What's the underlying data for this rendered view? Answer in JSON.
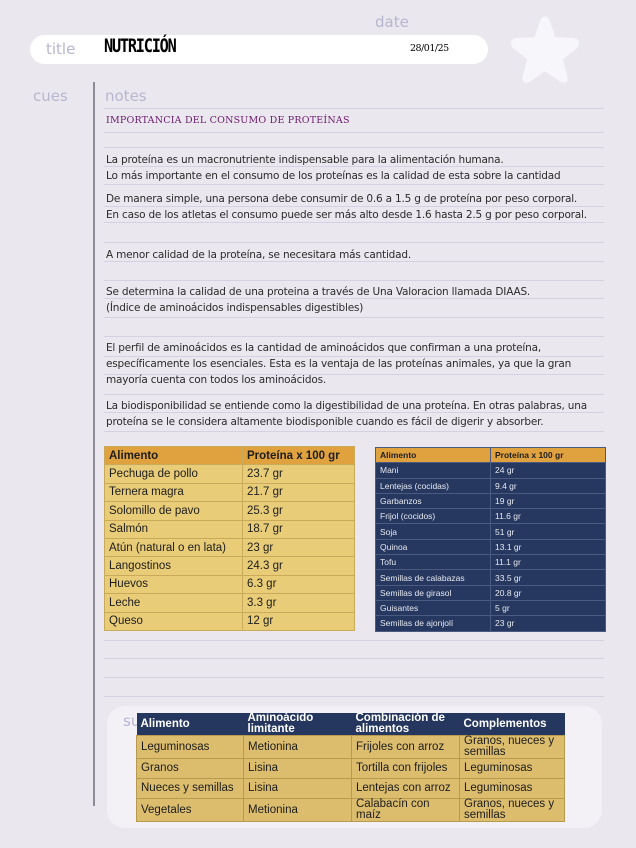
{
  "labels": {
    "title": "title",
    "date": "date",
    "cues": "cues",
    "notes": "notes",
    "summary": "su"
  },
  "title": "NUTRICIÓN",
  "date": "28/01/25",
  "heading": "IMPORTANCIA DEL CONSUMO DE PROTEÍNAS",
  "notes": [
    "La proteína es un macronutriente indispensable para la alimentación humana.",
    "Lo más importante en el consumo de los proteínas es la calidad de esta sobre la cantidad",
    "De manera simple, una persona debe consumir de 0.6 a 1.5 g de proteína por peso corporal.",
    "En caso de los atletas el consumo puede ser más alto desde 1.6 hasta 2.5 g por peso corporal.",
    "A menor calidad de la proteína, se necesitara más cantidad.",
    "Se determina la calidad de una proteina a través de Una Valoracion llamada DIAAS.",
    "(Índice de aminoácidos indispensables digestibles)",
    "El perfil de aminoácidos es la cantidad de aminoácidos que confirman a una proteína,",
    "específicamente los esenciales. Esta es la ventaja de las proteínas animales, ya que la gran",
    "mayoría cuenta con todos los aminoácidos.",
    "La biodisponibilidad se entiende como la digestibilidad de una proteína. En otras palabras, una",
    "proteína se le considera altamente biodisponible cuando es fácil de digerir y absorber."
  ],
  "animal_table": {
    "headers": [
      "Alimento",
      "Proteína x 100 gr"
    ],
    "rows": [
      [
        "Pechuga de pollo",
        "23.7 gr"
      ],
      [
        "Ternera magra",
        "21.7 gr"
      ],
      [
        "Solomillo de pavo",
        "25.3 gr"
      ],
      [
        "Salmón",
        "18.7 gr"
      ],
      [
        "Atún (natural o en lata)",
        "23 gr"
      ],
      [
        "Langostinos",
        "24.3 gr"
      ],
      [
        "Huevos",
        "6.3 gr"
      ],
      [
        "Leche",
        "3.3 gr"
      ],
      [
        "Queso",
        "12 gr"
      ]
    ]
  },
  "plant_table": {
    "headers": [
      "Alimento",
      "Proteína x 100 gr"
    ],
    "rows": [
      [
        "Mani",
        "24 gr"
      ],
      [
        "Lentejas (cocidas)",
        "9.4 gr"
      ],
      [
        "Garbanzos",
        "19 gr"
      ],
      [
        "Frijol (cocidos)",
        "11.6 gr"
      ],
      [
        "Soja",
        "51 gr"
      ],
      [
        "Quinoa",
        "13.1 gr"
      ],
      [
        "Tofu",
        "11.1 gr"
      ],
      [
        "Semillas de calabazas",
        "33.5 gr"
      ],
      [
        "Semillas de girasol",
        "20.8 gr"
      ],
      [
        "Guisantes",
        "5 gr"
      ],
      [
        "Semillas de ajonjolí",
        "23 gr"
      ]
    ]
  },
  "combo_table": {
    "headers": [
      "Alimento",
      "Aminoácido limitante",
      "Combinación de alimentos",
      "Complementos"
    ],
    "rows": [
      [
        "Leguminosas",
        "Metionina",
        "Frijoles con arroz",
        "Granos, nueces y semillas"
      ],
      [
        "Granos",
        "Lisina",
        "Tortilla con frijoles",
        "Leguminosas"
      ],
      [
        "Nueces y semillas",
        "Lisina",
        "Lentejas con arroz",
        "Leguminosas"
      ],
      [
        "Vegetales",
        "Metionina",
        "Calabacín con maíz",
        "Granos, nueces y semillas"
      ]
    ]
  },
  "colors": {
    "background": "#ebe7ee",
    "heading": "#6b1a6e",
    "navy": "#25375e",
    "gold": "#e8cc78",
    "orange": "#e0a23e"
  }
}
